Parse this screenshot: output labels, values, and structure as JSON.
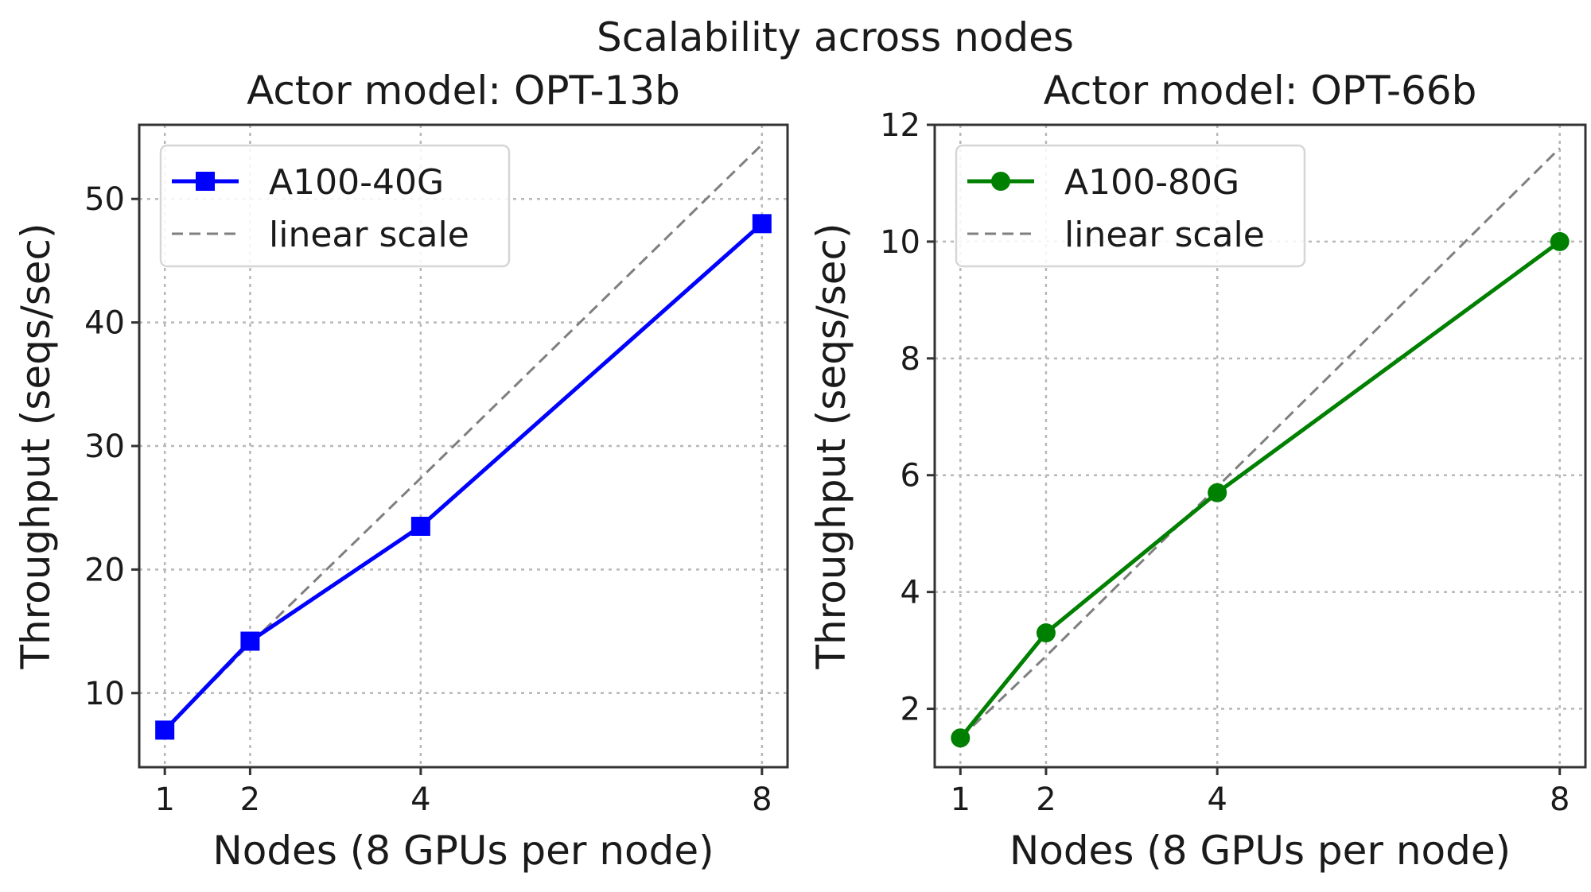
{
  "figure": {
    "title": "Scalability across nodes"
  },
  "chart_data": [
    {
      "type": "line",
      "title": "Actor model: OPT-13b",
      "xlabel": "Nodes (8 GPUs per node)",
      "ylabel": "Throughput (seqs/sec)",
      "x": [
        1,
        2,
        4,
        8
      ],
      "xticks": [
        1,
        2,
        4,
        8
      ],
      "yticks": [
        10,
        20,
        30,
        40,
        50
      ],
      "xlim": [
        0.7,
        8.3
      ],
      "ylim": [
        4,
        56
      ],
      "grid": true,
      "legend_position": "upper-left",
      "series": [
        {
          "name": "A100-40G",
          "values": [
            7.0,
            14.2,
            23.5,
            48.0
          ],
          "color": "#0000ff",
          "marker": "square",
          "style": "solid"
        },
        {
          "name": "linear scale",
          "values": [
            7.0,
            14.0,
            27.4,
            54.4
          ],
          "color": "#7f7f7f",
          "marker": "none",
          "style": "dashed"
        }
      ]
    },
    {
      "type": "line",
      "title": "Actor model: OPT-66b",
      "xlabel": "Nodes (8 GPUs per node)",
      "ylabel": "Throughput (seqs/sec)",
      "x": [
        1,
        2,
        4,
        8
      ],
      "xticks": [
        1,
        2,
        4,
        8
      ],
      "yticks": [
        2,
        4,
        6,
        8,
        10,
        12
      ],
      "xlim": [
        0.7,
        8.3
      ],
      "ylim": [
        1.0,
        12.0
      ],
      "grid": true,
      "legend_position": "upper-left",
      "series": [
        {
          "name": "A100-80G",
          "values": [
            1.5,
            3.3,
            5.7,
            10.0
          ],
          "color": "#008000",
          "marker": "circle",
          "style": "solid"
        },
        {
          "name": "linear scale",
          "values": [
            1.5,
            2.9,
            5.8,
            11.6
          ],
          "color": "#7f7f7f",
          "marker": "none",
          "style": "dashed"
        }
      ]
    }
  ]
}
